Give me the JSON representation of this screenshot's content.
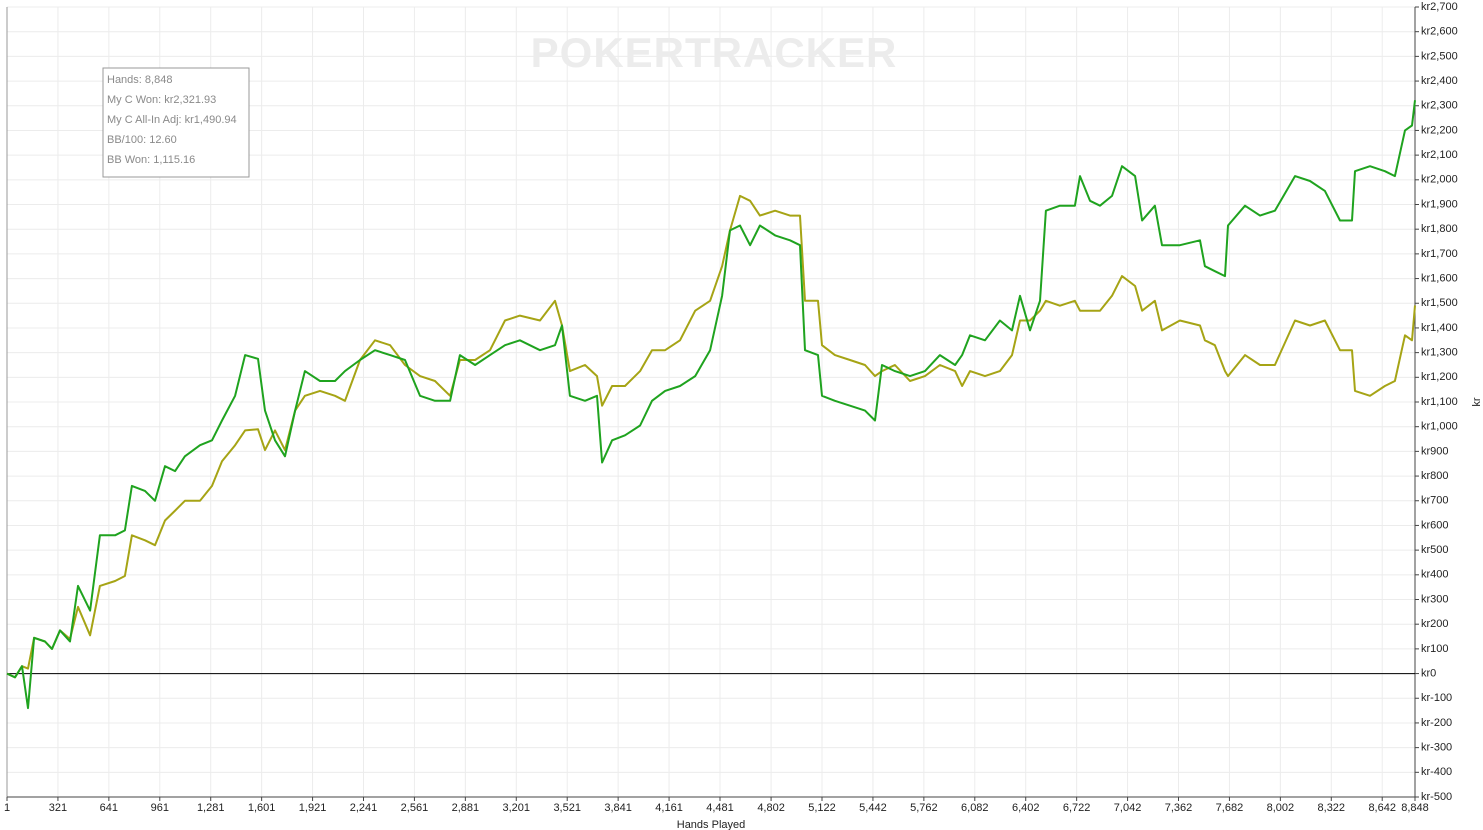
{
  "chart_data": {
    "type": "line",
    "watermark": "POKERTRACKER",
    "x_label": "Hands Played",
    "y_label": "kr",
    "info_box": [
      "Hands: 8,848",
      "My C Won: kr2,321.93",
      "My C All-In Adj: kr1,490.94",
      "BB/100: 12.60",
      "BB Won: 1,115.16"
    ],
    "x": [
      1,
      51,
      95,
      133,
      171,
      240,
      284,
      334,
      397,
      447,
      523,
      585,
      680,
      742,
      786,
      868,
      931,
      994,
      1057,
      1119,
      1214,
      1289,
      1352,
      1434,
      1497,
      1578,
      1622,
      1685,
      1748,
      1811,
      1873,
      1968,
      2062,
      2125,
      2219,
      2313,
      2408,
      2502,
      2596,
      2690,
      2785,
      2847,
      2942,
      3036,
      3130,
      3224,
      3350,
      3444,
      3488,
      3538,
      3633,
      3708,
      3740,
      3803,
      3884,
      3979,
      4054,
      4136,
      4230,
      4325,
      4419,
      4494,
      4544,
      4607,
      4670,
      4732,
      4827,
      4921,
      4984,
      5015,
      5097,
      5122,
      5203,
      5298,
      5392,
      5455,
      5499,
      5580,
      5675,
      5769,
      5863,
      5958,
      6002,
      6052,
      6146,
      6240,
      6316,
      6366,
      6429,
      6492,
      6529,
      6617,
      6711,
      6743,
      6806,
      6869,
      6944,
      7007,
      7089,
      7133,
      7214,
      7258,
      7371,
      7497,
      7528,
      7591,
      7654,
      7673,
      7780,
      7874,
      7968,
      8094,
      8188,
      8282,
      8377,
      8452,
      8471,
      8565,
      8659,
      8722,
      8785,
      8829,
      8848
    ],
    "series": [
      {
        "color": "#1fa31f",
        "values": [
          0,
          -15,
          30,
          -140,
          145,
          130,
          100,
          175,
          130,
          355,
          255,
          560,
          560,
          580,
          760,
          740,
          700,
          840,
          820,
          880,
          925,
          945,
          1025,
          1125,
          1290,
          1275,
          1065,
          945,
          880,
          1065,
          1225,
          1185,
          1185,
          1225,
          1270,
          1310,
          1290,
          1270,
          1125,
          1105,
          1105,
          1290,
          1250,
          1290,
          1330,
          1350,
          1310,
          1330,
          1410,
          1125,
          1105,
          1125,
          855,
          945,
          965,
          1005,
          1105,
          1145,
          1165,
          1205,
          1310,
          1530,
          1795,
          1815,
          1735,
          1815,
          1775,
          1755,
          1735,
          1310,
          1290,
          1125,
          1105,
          1085,
          1065,
          1025,
          1250,
          1225,
          1205,
          1225,
          1290,
          1250,
          1290,
          1370,
          1350,
          1430,
          1390,
          1530,
          1390,
          1510,
          1875,
          1895,
          1895,
          2015,
          1915,
          1895,
          1935,
          2055,
          2015,
          1835,
          1895,
          1735,
          1735,
          1755,
          1650,
          1630,
          1610,
          1815,
          1895,
          1855,
          1875,
          2015,
          1995,
          1955,
          1835,
          1835,
          2035,
          2055,
          2035,
          2015,
          2200,
          2220,
          2321.93
        ]
      },
      {
        "color": "#a6a415",
        "values": [
          0,
          -15,
          30,
          20,
          145,
          130,
          100,
          175,
          140,
          270,
          155,
          355,
          375,
          395,
          560,
          540,
          520,
          620,
          660,
          700,
          700,
          760,
          860,
          925,
          985,
          990,
          905,
          985,
          905,
          1065,
          1125,
          1145,
          1125,
          1105,
          1270,
          1350,
          1330,
          1250,
          1205,
          1185,
          1125,
          1270,
          1270,
          1310,
          1430,
          1450,
          1430,
          1510,
          1410,
          1225,
          1250,
          1205,
          1085,
          1165,
          1165,
          1225,
          1310,
          1310,
          1350,
          1470,
          1510,
          1650,
          1795,
          1935,
          1915,
          1855,
          1875,
          1855,
          1855,
          1510,
          1510,
          1330,
          1290,
          1270,
          1250,
          1205,
          1225,
          1250,
          1185,
          1205,
          1250,
          1225,
          1165,
          1225,
          1205,
          1225,
          1290,
          1430,
          1430,
          1470,
          1510,
          1490,
          1510,
          1470,
          1470,
          1470,
          1530,
          1610,
          1570,
          1470,
          1510,
          1390,
          1430,
          1410,
          1350,
          1330,
          1225,
          1205,
          1290,
          1250,
          1250,
          1430,
          1410,
          1430,
          1310,
          1310,
          1145,
          1125,
          1165,
          1185,
          1370,
          1350,
          1490.94
        ]
      }
    ],
    "xlim": [
      1,
      8848
    ],
    "xticks": [
      1,
      {
        "value": 321,
        "label": "321"
      },
      {
        "value": 641,
        "label": "641"
      },
      {
        "value": 961,
        "label": "961"
      },
      {
        "value": 1281,
        "label": "1,281"
      },
      {
        "value": 1601,
        "label": "1,601"
      },
      {
        "value": 1921,
        "label": "1,921"
      },
      {
        "value": 2241,
        "label": "2,241"
      },
      {
        "value": 2561,
        "label": "2,561"
      },
      {
        "value": 2881,
        "label": "2,881"
      },
      {
        "value": 3201,
        "label": "3,201"
      },
      {
        "value": 3521,
        "label": "3,521"
      },
      {
        "value": 3841,
        "label": "3,841"
      },
      {
        "value": 4161,
        "label": "4,161"
      },
      {
        "value": 4481,
        "label": "4,481"
      },
      {
        "value": 4802,
        "label": "4,802"
      },
      {
        "value": 5122,
        "label": "5,122"
      },
      {
        "value": 5442,
        "label": "5,442"
      },
      {
        "value": 5762,
        "label": "5,762"
      },
      {
        "value": 6082,
        "label": "6,082"
      },
      {
        "value": 6402,
        "label": "6,402"
      },
      {
        "value": 6722,
        "label": "6,722"
      },
      {
        "value": 7042,
        "label": "7,042"
      },
      {
        "value": 7362,
        "label": "7,362"
      },
      {
        "value": 7682,
        "label": "7,682"
      },
      {
        "value": 8002,
        "label": "8,002"
      },
      {
        "value": 8322,
        "label": "8,322"
      },
      {
        "value": 8642,
        "label": "8,642"
      },
      {
        "value": 8848,
        "label": "8,848"
      }
    ],
    "ylim": [
      -500,
      2700
    ],
    "yticks": [
      {
        "value": -500,
        "label": "kr-500"
      },
      {
        "value": -400,
        "label": "kr-400"
      },
      {
        "value": -300,
        "label": "kr-300"
      },
      {
        "value": -200,
        "label": "kr-200"
      },
      {
        "value": -100,
        "label": "kr-100"
      },
      {
        "value": 0,
        "label": "kr0"
      },
      {
        "value": 100,
        "label": "kr100"
      },
      {
        "value": 200,
        "label": "kr200"
      },
      {
        "value": 300,
        "label": "kr300"
      },
      {
        "value": 400,
        "label": "kr400"
      },
      {
        "value": 500,
        "label": "kr500"
      },
      {
        "value": 600,
        "label": "kr600"
      },
      {
        "value": 700,
        "label": "kr700"
      },
      {
        "value": 800,
        "label": "kr800"
      },
      {
        "value": 900,
        "label": "kr900"
      },
      {
        "value": 1000,
        "label": "kr1,000"
      },
      {
        "value": 1100,
        "label": "kr1,100"
      },
      {
        "value": 1200,
        "label": "kr1,200"
      },
      {
        "value": 1300,
        "label": "kr1,300"
      },
      {
        "value": 1400,
        "label": "kr1,400"
      },
      {
        "value": 1500,
        "label": "kr1,500"
      },
      {
        "value": 1600,
        "label": "kr1,600"
      },
      {
        "value": 1700,
        "label": "kr1,700"
      },
      {
        "value": 1800,
        "label": "kr1,800"
      },
      {
        "value": 1900,
        "label": "kr1,900"
      },
      {
        "value": 2000,
        "label": "kr2,000"
      },
      {
        "value": 2100,
        "label": "kr2,100"
      },
      {
        "value": 2200,
        "label": "kr2,200"
      },
      {
        "value": 2300,
        "label": "kr2,300"
      },
      {
        "value": 2400,
        "label": "kr2,400"
      },
      {
        "value": 2500,
        "label": "kr2,500"
      },
      {
        "value": 2600,
        "label": "kr2,600"
      },
      {
        "value": 2700,
        "label": "kr2,700"
      }
    ],
    "grid": true
  }
}
